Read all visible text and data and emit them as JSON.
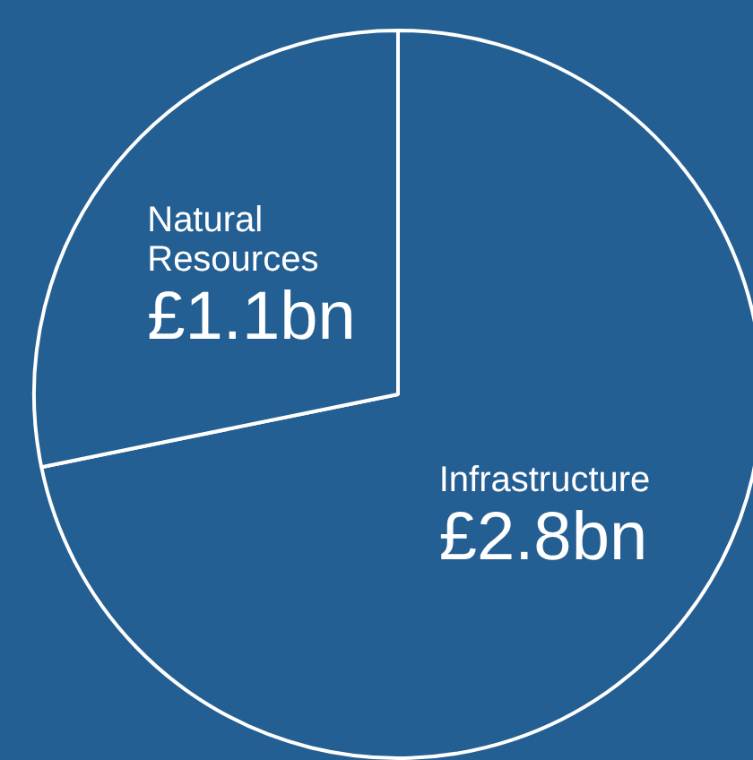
{
  "chart_data": {
    "type": "pie",
    "categories": [
      "Infrastructure",
      "Natural Resources"
    ],
    "values": [
      2.8,
      1.1
    ],
    "colors": [
      "#245f93",
      "#245f93"
    ],
    "value_labels": [
      "£2.8bn",
      "£1.1bn"
    ],
    "legend": false
  }
}
